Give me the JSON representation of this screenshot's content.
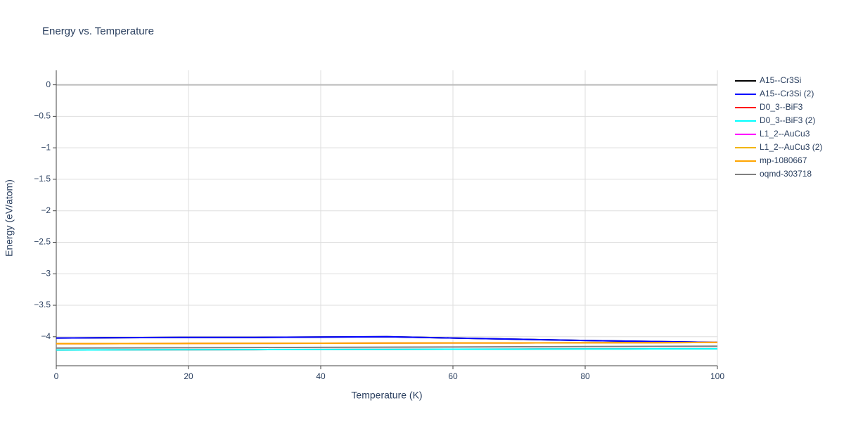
{
  "chart_data": {
    "type": "line",
    "title": "Energy vs. Temperature",
    "x_label": "Temperature (K)",
    "y_label": "Energy (eV/atom)",
    "x": [
      0,
      10,
      20,
      30,
      40,
      50,
      60,
      70,
      80,
      90,
      100
    ],
    "xlim": [
      0,
      100
    ],
    "xticks": [
      0,
      20,
      40,
      60,
      80,
      100
    ],
    "ylim": [
      -4.46,
      0.23
    ],
    "yticks": [
      0,
      {
        "value": -0.5,
        "label": "−0.5"
      },
      {
        "value": -1,
        "label": "−1"
      },
      {
        "value": -1.5,
        "label": "−1.5"
      },
      {
        "value": -2,
        "label": "−2"
      },
      {
        "value": -2.5,
        "label": "−2.5"
      },
      {
        "value": -3,
        "label": "−3"
      },
      {
        "value": -3.5,
        "label": "−3.5"
      },
      {
        "value": -4,
        "label": "−4"
      }
    ],
    "grid": true,
    "legend": "right",
    "series": [
      {
        "name": "A15--Cr3Si",
        "color": "black",
        "values": [
          -4.02,
          -4.015,
          -4.01,
          -4.01,
          -4.005,
          -4.0,
          -4.02,
          -4.04,
          -4.06,
          -4.075,
          -4.09
        ]
      },
      {
        "name": "A15--Cr3Si (2)",
        "color": "blue",
        "values": [
          -4.02,
          -4.015,
          -4.01,
          -4.01,
          -4.005,
          -4.0,
          -4.02,
          -4.04,
          -4.06,
          -4.075,
          -4.09
        ]
      },
      {
        "name": "D0_3--BiF3",
        "color": "red",
        "values": [
          -4.21,
          -4.208,
          -4.206,
          -4.204,
          -4.202,
          -4.2,
          -4.198,
          -4.196,
          -4.194,
          -4.192,
          -4.19
        ]
      },
      {
        "name": "D0_3--BiF3 (2)",
        "color": "cyan",
        "values": [
          -4.21,
          -4.208,
          -4.206,
          -4.204,
          -4.202,
          -4.2,
          -4.198,
          -4.196,
          -4.194,
          -4.192,
          -4.19
        ]
      },
      {
        "name": "L1_2--AuCu3",
        "color": "magenta",
        "values": [
          -4.11,
          -4.108,
          -4.106,
          -4.104,
          -4.102,
          -4.1,
          -4.099,
          -4.098,
          -4.096,
          -4.094,
          -4.09
        ]
      },
      {
        "name": "L1_2--AuCu3 (2)",
        "color": "#f2b50f",
        "values": [
          -4.11,
          -4.108,
          -4.106,
          -4.104,
          -4.102,
          -4.1,
          -4.099,
          -4.098,
          -4.096,
          -4.094,
          -4.09
        ]
      },
      {
        "name": "mp-1080667",
        "color": "orange",
        "values": [
          -4.11,
          -4.108,
          -4.106,
          -4.104,
          -4.102,
          -4.1,
          -4.099,
          -4.098,
          -4.096,
          -4.094,
          -4.09
        ]
      },
      {
        "name": "oqmd-303718",
        "color": "gray",
        "values": [
          -4.18,
          -4.177,
          -4.174,
          -4.171,
          -4.168,
          -4.165,
          -4.162,
          -4.159,
          -4.156,
          -4.153,
          -4.15
        ]
      }
    ]
  }
}
